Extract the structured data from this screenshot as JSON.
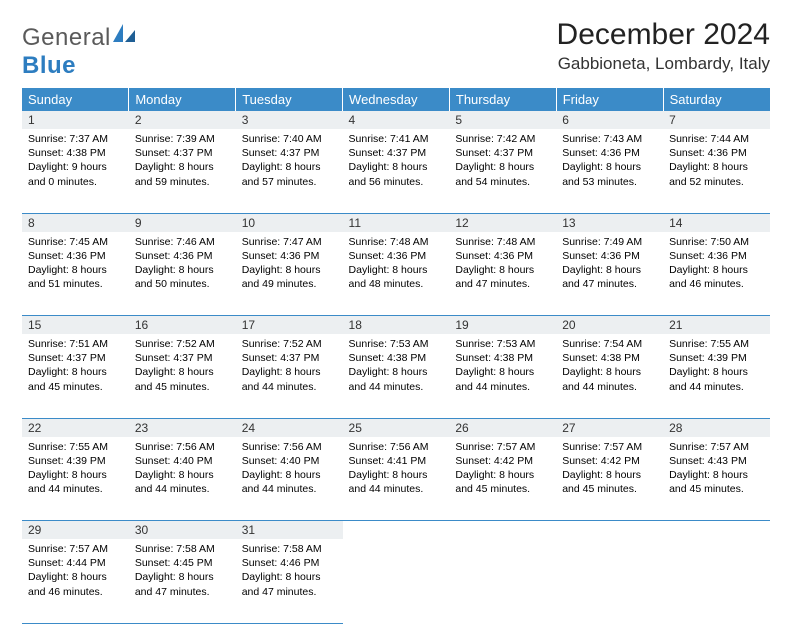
{
  "brand": {
    "part1": "General",
    "part2": "Blue"
  },
  "title": "December 2024",
  "location": "Gabbioneta, Lombardy, Italy",
  "colors": {
    "header_bg": "#3b8bc8",
    "header_text": "#ffffff",
    "daynum_bg": "#eceff1",
    "border": "#3b8bc8",
    "brand_gray": "#5a5a5a",
    "brand_blue": "#2d7dc0"
  },
  "weekdays": [
    "Sunday",
    "Monday",
    "Tuesday",
    "Wednesday",
    "Thursday",
    "Friday",
    "Saturday"
  ],
  "weeks": [
    [
      {
        "n": "1",
        "sunrise": "Sunrise: 7:37 AM",
        "sunset": "Sunset: 4:38 PM",
        "day": "Daylight: 9 hours and 0 minutes."
      },
      {
        "n": "2",
        "sunrise": "Sunrise: 7:39 AM",
        "sunset": "Sunset: 4:37 PM",
        "day": "Daylight: 8 hours and 59 minutes."
      },
      {
        "n": "3",
        "sunrise": "Sunrise: 7:40 AM",
        "sunset": "Sunset: 4:37 PM",
        "day": "Daylight: 8 hours and 57 minutes."
      },
      {
        "n": "4",
        "sunrise": "Sunrise: 7:41 AM",
        "sunset": "Sunset: 4:37 PM",
        "day": "Daylight: 8 hours and 56 minutes."
      },
      {
        "n": "5",
        "sunrise": "Sunrise: 7:42 AM",
        "sunset": "Sunset: 4:37 PM",
        "day": "Daylight: 8 hours and 54 minutes."
      },
      {
        "n": "6",
        "sunrise": "Sunrise: 7:43 AM",
        "sunset": "Sunset: 4:36 PM",
        "day": "Daylight: 8 hours and 53 minutes."
      },
      {
        "n": "7",
        "sunrise": "Sunrise: 7:44 AM",
        "sunset": "Sunset: 4:36 PM",
        "day": "Daylight: 8 hours and 52 minutes."
      }
    ],
    [
      {
        "n": "8",
        "sunrise": "Sunrise: 7:45 AM",
        "sunset": "Sunset: 4:36 PM",
        "day": "Daylight: 8 hours and 51 minutes."
      },
      {
        "n": "9",
        "sunrise": "Sunrise: 7:46 AM",
        "sunset": "Sunset: 4:36 PM",
        "day": "Daylight: 8 hours and 50 minutes."
      },
      {
        "n": "10",
        "sunrise": "Sunrise: 7:47 AM",
        "sunset": "Sunset: 4:36 PM",
        "day": "Daylight: 8 hours and 49 minutes."
      },
      {
        "n": "11",
        "sunrise": "Sunrise: 7:48 AM",
        "sunset": "Sunset: 4:36 PM",
        "day": "Daylight: 8 hours and 48 minutes."
      },
      {
        "n": "12",
        "sunrise": "Sunrise: 7:48 AM",
        "sunset": "Sunset: 4:36 PM",
        "day": "Daylight: 8 hours and 47 minutes."
      },
      {
        "n": "13",
        "sunrise": "Sunrise: 7:49 AM",
        "sunset": "Sunset: 4:36 PM",
        "day": "Daylight: 8 hours and 47 minutes."
      },
      {
        "n": "14",
        "sunrise": "Sunrise: 7:50 AM",
        "sunset": "Sunset: 4:36 PM",
        "day": "Daylight: 8 hours and 46 minutes."
      }
    ],
    [
      {
        "n": "15",
        "sunrise": "Sunrise: 7:51 AM",
        "sunset": "Sunset: 4:37 PM",
        "day": "Daylight: 8 hours and 45 minutes."
      },
      {
        "n": "16",
        "sunrise": "Sunrise: 7:52 AM",
        "sunset": "Sunset: 4:37 PM",
        "day": "Daylight: 8 hours and 45 minutes."
      },
      {
        "n": "17",
        "sunrise": "Sunrise: 7:52 AM",
        "sunset": "Sunset: 4:37 PM",
        "day": "Daylight: 8 hours and 44 minutes."
      },
      {
        "n": "18",
        "sunrise": "Sunrise: 7:53 AM",
        "sunset": "Sunset: 4:38 PM",
        "day": "Daylight: 8 hours and 44 minutes."
      },
      {
        "n": "19",
        "sunrise": "Sunrise: 7:53 AM",
        "sunset": "Sunset: 4:38 PM",
        "day": "Daylight: 8 hours and 44 minutes."
      },
      {
        "n": "20",
        "sunrise": "Sunrise: 7:54 AM",
        "sunset": "Sunset: 4:38 PM",
        "day": "Daylight: 8 hours and 44 minutes."
      },
      {
        "n": "21",
        "sunrise": "Sunrise: 7:55 AM",
        "sunset": "Sunset: 4:39 PM",
        "day": "Daylight: 8 hours and 44 minutes."
      }
    ],
    [
      {
        "n": "22",
        "sunrise": "Sunrise: 7:55 AM",
        "sunset": "Sunset: 4:39 PM",
        "day": "Daylight: 8 hours and 44 minutes."
      },
      {
        "n": "23",
        "sunrise": "Sunrise: 7:56 AM",
        "sunset": "Sunset: 4:40 PM",
        "day": "Daylight: 8 hours and 44 minutes."
      },
      {
        "n": "24",
        "sunrise": "Sunrise: 7:56 AM",
        "sunset": "Sunset: 4:40 PM",
        "day": "Daylight: 8 hours and 44 minutes."
      },
      {
        "n": "25",
        "sunrise": "Sunrise: 7:56 AM",
        "sunset": "Sunset: 4:41 PM",
        "day": "Daylight: 8 hours and 44 minutes."
      },
      {
        "n": "26",
        "sunrise": "Sunrise: 7:57 AM",
        "sunset": "Sunset: 4:42 PM",
        "day": "Daylight: 8 hours and 45 minutes."
      },
      {
        "n": "27",
        "sunrise": "Sunrise: 7:57 AM",
        "sunset": "Sunset: 4:42 PM",
        "day": "Daylight: 8 hours and 45 minutes."
      },
      {
        "n": "28",
        "sunrise": "Sunrise: 7:57 AM",
        "sunset": "Sunset: 4:43 PM",
        "day": "Daylight: 8 hours and 45 minutes."
      }
    ],
    [
      {
        "n": "29",
        "sunrise": "Sunrise: 7:57 AM",
        "sunset": "Sunset: 4:44 PM",
        "day": "Daylight: 8 hours and 46 minutes."
      },
      {
        "n": "30",
        "sunrise": "Sunrise: 7:58 AM",
        "sunset": "Sunset: 4:45 PM",
        "day": "Daylight: 8 hours and 47 minutes."
      },
      {
        "n": "31",
        "sunrise": "Sunrise: 7:58 AM",
        "sunset": "Sunset: 4:46 PM",
        "day": "Daylight: 8 hours and 47 minutes."
      },
      null,
      null,
      null,
      null
    ]
  ]
}
